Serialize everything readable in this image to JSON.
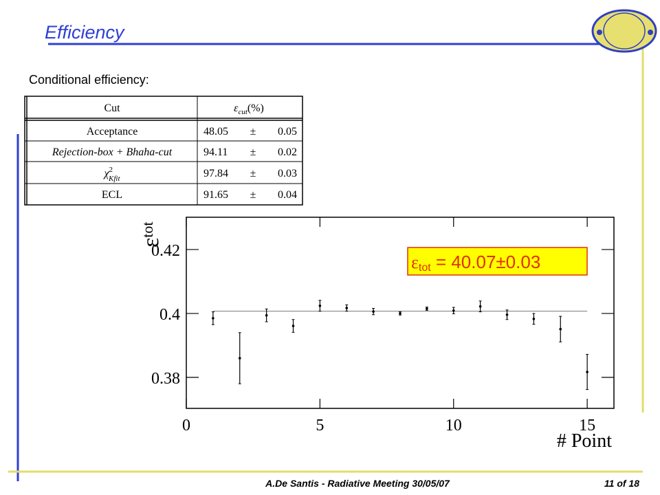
{
  "title": "Efficiency",
  "subtitle": "Conditional efficiency:",
  "table": {
    "header": {
      "cut": "Cut",
      "symbol": "ε",
      "sub": "cut",
      "unit": "(%)"
    },
    "rows": [
      {
        "cut": "Acceptance",
        "value": "48.05",
        "pm": "±",
        "error": "0.05"
      },
      {
        "cut": "Rejection-box + Bhaha-cut",
        "value": "94.11",
        "pm": "±",
        "error": "0.02"
      },
      {
        "cut": "χ",
        "sup": "2",
        "sub": "Kfit",
        "value": "97.84",
        "pm": "±",
        "error": "0.03"
      },
      {
        "cut": "ECL",
        "value": "91.65",
        "pm": "±",
        "error": "0.04"
      }
    ]
  },
  "chart_data": {
    "type": "errorbar",
    "y_label": {
      "symbol": "ε",
      "sub": "tot"
    },
    "x_label": "# Point",
    "x": [
      1,
      2,
      3,
      4,
      5,
      6,
      7,
      8,
      9,
      10,
      11,
      12,
      13,
      14,
      15
    ],
    "values": [
      0.3985,
      0.386,
      0.3994,
      0.3961,
      0.4024,
      0.4017,
      0.4006,
      0.4,
      0.4015,
      0.4009,
      0.4022,
      0.3996,
      0.3983,
      0.3951,
      0.3817
    ],
    "errors": [
      0.002,
      0.008,
      0.002,
      0.002,
      0.0017,
      0.001,
      0.001,
      0.0005,
      0.0005,
      0.001,
      0.0017,
      0.0015,
      0.0017,
      0.004,
      0.0055
    ],
    "fit": 0.4007,
    "color": "#000000",
    "xlim": [
      0,
      16
    ],
    "ylim": [
      0.3703,
      0.4301
    ],
    "xticks": [
      0,
      5,
      10,
      15
    ],
    "yticks": [
      0.38,
      0.4,
      0.42
    ],
    "annotation": {
      "symbol": "ε",
      "sub": "tot",
      "text": " = 40.07±0.03"
    }
  },
  "footer": {
    "text": "A.De Santis - Radiative Meeting 30/05/07",
    "page": "11 of 18"
  }
}
